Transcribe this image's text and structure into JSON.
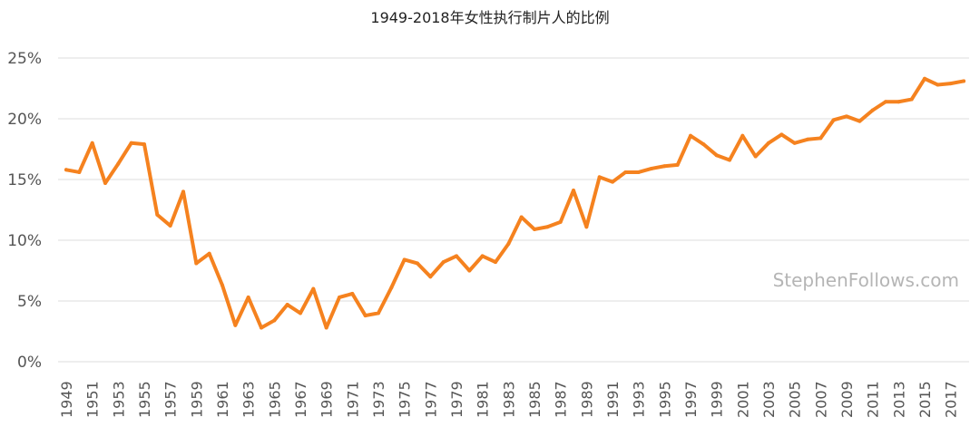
{
  "chart_data": {
    "type": "line",
    "title": "1949-2018年女性执行制片人的比例",
    "xlabel": "",
    "ylabel": "",
    "ylim": [
      0,
      25
    ],
    "yticks": [
      "0%",
      "5%",
      "10%",
      "15%",
      "20%",
      "25%"
    ],
    "xtick_labels": [
      "1949",
      "1951",
      "1953",
      "1955",
      "1957",
      "1959",
      "1961",
      "1963",
      "1965",
      "1967",
      "1969",
      "1971",
      "1973",
      "1975",
      "1977",
      "1979",
      "1981",
      "1983",
      "1985",
      "1987",
      "1989",
      "1991",
      "1993",
      "1995",
      "1997",
      "1999",
      "2001",
      "2003",
      "2005",
      "2007",
      "2009",
      "2011",
      "2013",
      "2015",
      "2017"
    ],
    "grid": true,
    "legend": "none",
    "line_color": "#F5821F",
    "watermark": "StephenFollows.com",
    "series": [
      {
        "x": [
          1949,
          1950,
          1951,
          1952,
          1953,
          1954,
          1955,
          1956,
          1957,
          1958,
          1959,
          1960,
          1961,
          1962,
          1963,
          1964,
          1965,
          1966,
          1967,
          1968,
          1969,
          1970,
          1971,
          1972,
          1973,
          1974,
          1975,
          1976,
          1977,
          1978,
          1979,
          1980,
          1981,
          1982,
          1983,
          1984,
          1985,
          1986,
          1987,
          1988,
          1989,
          1990,
          1991,
          1992,
          1993,
          1994,
          1995,
          1996,
          1997,
          1998,
          1999,
          2000,
          2001,
          2002,
          2003,
          2004,
          2005,
          2006,
          2007,
          2008,
          2009,
          2010,
          2011,
          2012,
          2013,
          2014,
          2015,
          2016,
          2017,
          2018
        ],
        "values": [
          15.8,
          15.6,
          18.0,
          14.7,
          16.3,
          18.0,
          17.9,
          12.1,
          11.2,
          14.0,
          8.1,
          8.9,
          6.3,
          3.0,
          5.3,
          2.8,
          3.4,
          4.7,
          4.0,
          6.0,
          2.8,
          5.3,
          5.6,
          3.8,
          4.0,
          6.1,
          8.4,
          8.1,
          7.0,
          8.2,
          8.7,
          7.5,
          8.7,
          8.2,
          9.7,
          11.9,
          10.9,
          11.1,
          11.5,
          14.1,
          11.1,
          15.2,
          14.8,
          15.6,
          15.6,
          15.9,
          16.1,
          16.2,
          18.6,
          17.9,
          17.0,
          16.6,
          18.6,
          16.9,
          18.0,
          18.7,
          18.0,
          18.3,
          18.4,
          19.9,
          20.2,
          19.8,
          20.7,
          21.4,
          21.4,
          21.6,
          23.3,
          22.8,
          22.9,
          23.1
        ]
      }
    ]
  }
}
